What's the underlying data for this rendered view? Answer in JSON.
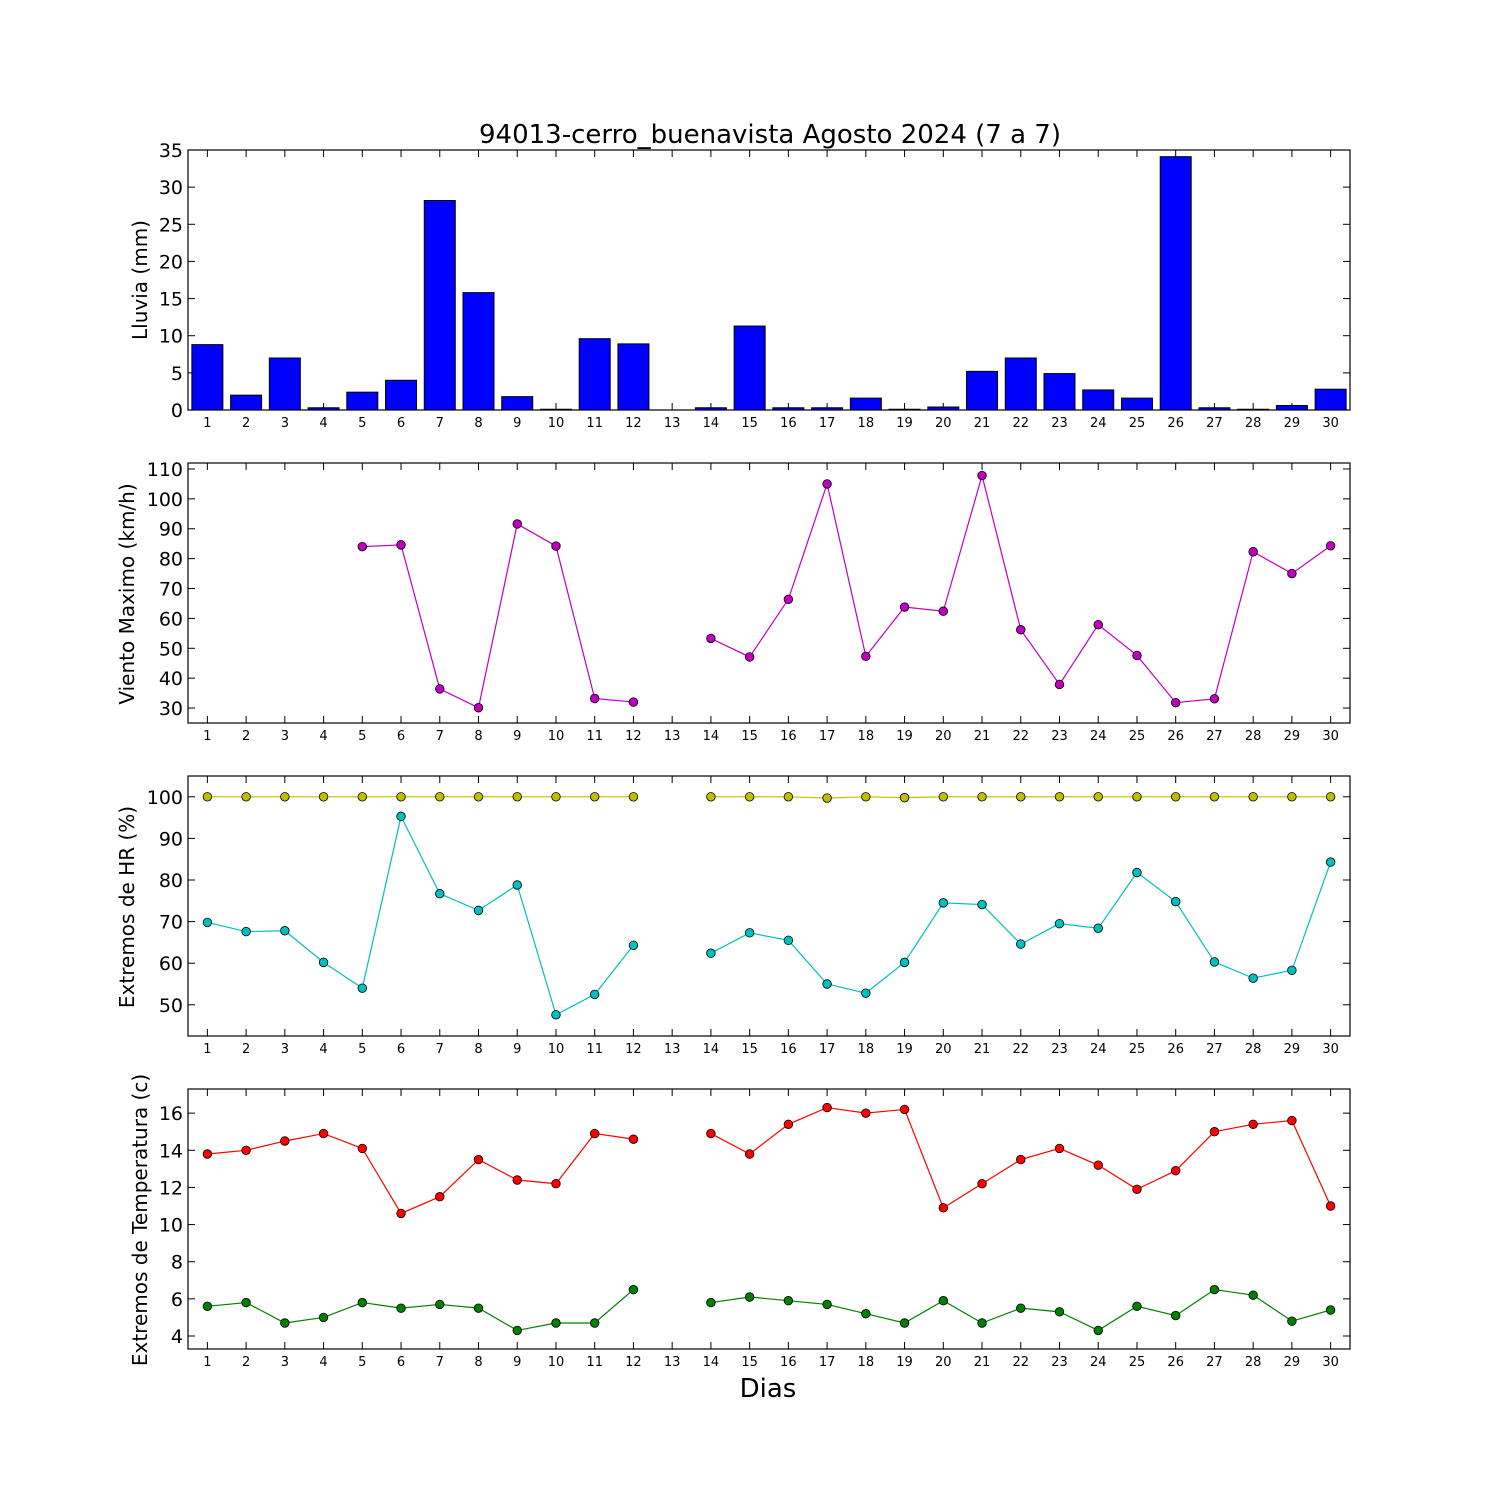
{
  "title": "94013-cerro_buenavista Agosto 2024  (7 a 7)",
  "xlabel": "Dias",
  "chart_data": [
    {
      "type": "bar",
      "ylabel": "Lluvia (mm)",
      "ylim": [
        0,
        35
      ],
      "yticks": [
        0,
        5,
        10,
        15,
        20,
        25,
        30,
        35
      ],
      "x": [
        1,
        2,
        3,
        4,
        5,
        6,
        7,
        8,
        9,
        10,
        11,
        12,
        13,
        14,
        15,
        16,
        17,
        18,
        19,
        20,
        21,
        22,
        23,
        24,
        25,
        26,
        27,
        28,
        29,
        30
      ],
      "series": [
        {
          "color": "#0000ff",
          "values": [
            8.8,
            2.0,
            7.0,
            0.3,
            2.4,
            4.0,
            28.2,
            15.8,
            1.8,
            0.1,
            9.6,
            8.9,
            0,
            0.3,
            11.3,
            0.3,
            0.3,
            1.6,
            0.1,
            0.4,
            5.2,
            7.0,
            4.9,
            2.7,
            1.6,
            34.1,
            0.3,
            0.1,
            0.6,
            2.8
          ]
        }
      ]
    },
    {
      "type": "line",
      "ylabel": "Viento Maximo (km/h)",
      "ylim": [
        25,
        112
      ],
      "yticks": [
        30,
        40,
        50,
        60,
        70,
        80,
        90,
        100,
        110
      ],
      "x": [
        1,
        2,
        3,
        4,
        5,
        6,
        7,
        8,
        9,
        10,
        11,
        12,
        13,
        14,
        15,
        16,
        17,
        18,
        19,
        20,
        21,
        22,
        23,
        24,
        25,
        26,
        27,
        28,
        29,
        30
      ],
      "series": [
        {
          "color": "#bf00bf",
          "values": [
            null,
            null,
            null,
            null,
            84.0,
            84.6,
            36.4,
            30.1,
            91.6,
            84.2,
            33.2,
            32.0,
            null,
            53.3,
            47.1,
            66.4,
            105.0,
            47.3,
            63.8,
            62.4,
            107.8,
            56.2,
            37.9,
            57.9,
            47.6,
            31.8,
            33.1,
            82.3,
            75.0,
            84.3
          ]
        }
      ]
    },
    {
      "type": "line",
      "ylabel": "Extremos de HR (%)",
      "ylim": [
        42.5,
        105
      ],
      "yticks": [
        50,
        60,
        70,
        80,
        90,
        100
      ],
      "x": [
        1,
        2,
        3,
        4,
        5,
        6,
        7,
        8,
        9,
        10,
        11,
        12,
        13,
        14,
        15,
        16,
        17,
        18,
        19,
        20,
        21,
        22,
        23,
        24,
        25,
        26,
        27,
        28,
        29,
        30
      ],
      "series": [
        {
          "color": "#bfbf00",
          "values": [
            100,
            100,
            100,
            100,
            100,
            100,
            100,
            100,
            100,
            100,
            100,
            100,
            null,
            100,
            100,
            100,
            99.7,
            100,
            99.8,
            100,
            100,
            100,
            100,
            100,
            100,
            100,
            100,
            100,
            100,
            100
          ]
        },
        {
          "color": "#00bfbf",
          "values": [
            69.8,
            67.6,
            67.8,
            60.2,
            54.0,
            95.3,
            76.7,
            72.7,
            78.8,
            47.6,
            52.5,
            64.3,
            null,
            62.4,
            67.3,
            65.5,
            55.0,
            52.8,
            60.2,
            74.5,
            74.1,
            64.6,
            69.5,
            68.4,
            81.8,
            74.8,
            60.3,
            56.4,
            58.3,
            84.3
          ]
        }
      ]
    },
    {
      "type": "line",
      "ylabel": "Extremos de Temperatura (c)",
      "ylim": [
        3.3,
        17.3
      ],
      "yticks": [
        4,
        6,
        8,
        10,
        12,
        14,
        16
      ],
      "x": [
        1,
        2,
        3,
        4,
        5,
        6,
        7,
        8,
        9,
        10,
        11,
        12,
        13,
        14,
        15,
        16,
        17,
        18,
        19,
        20,
        21,
        22,
        23,
        24,
        25,
        26,
        27,
        28,
        29,
        30
      ],
      "series": [
        {
          "color": "#ff0000",
          "values": [
            13.8,
            14.0,
            14.5,
            14.9,
            14.1,
            10.6,
            11.5,
            13.5,
            12.4,
            12.2,
            14.9,
            14.6,
            null,
            14.9,
            13.8,
            15.4,
            16.3,
            16.0,
            16.2,
            10.9,
            12.2,
            13.5,
            14.1,
            13.2,
            11.9,
            12.9,
            15.0,
            15.4,
            15.6,
            11.0
          ]
        },
        {
          "color": "#008000",
          "values": [
            5.6,
            5.8,
            4.7,
            5.0,
            5.8,
            5.5,
            5.7,
            5.5,
            4.3,
            4.7,
            4.7,
            6.5,
            null,
            5.8,
            6.1,
            5.9,
            5.7,
            5.2,
            4.7,
            5.9,
            4.7,
            5.5,
            5.3,
            4.3,
            5.6,
            5.1,
            6.5,
            6.2,
            4.8,
            5.4
          ]
        }
      ]
    }
  ]
}
